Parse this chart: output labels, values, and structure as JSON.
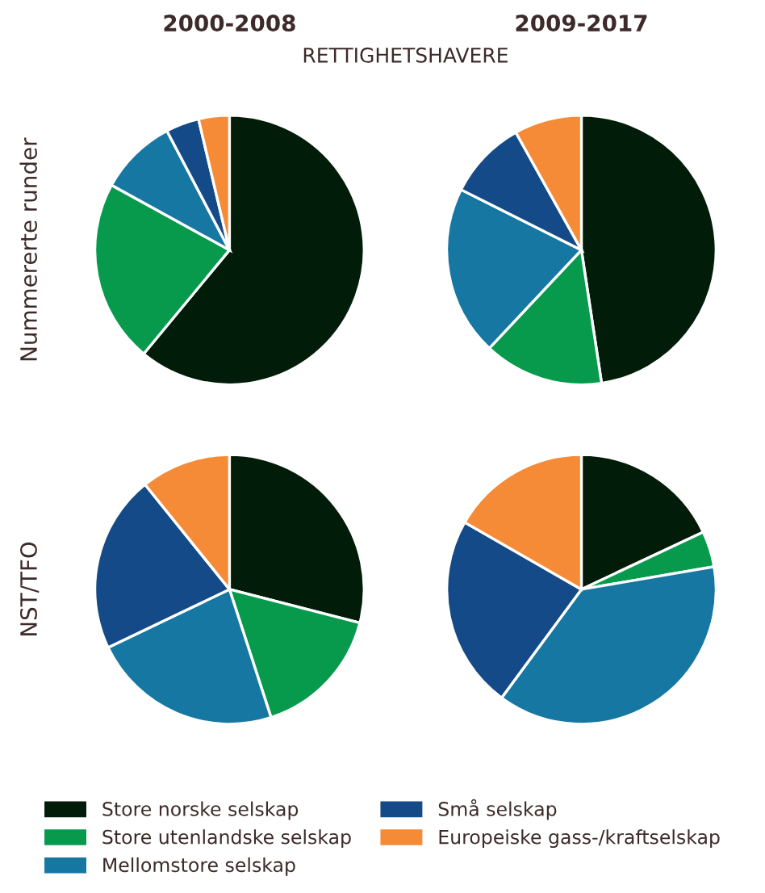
{
  "chart_data": [
    {
      "type": "pie",
      "title": "2000-2008",
      "subtitle": "RETTIGHETSHAVERE",
      "ylabel": "Nummererte runder",
      "legend": "bottom",
      "categories": [
        "Store norske selskap",
        "Store utenlandske selskap",
        "Mellomstore selskap",
        "Små selskap",
        "Europeiske gass-/kraftselskap"
      ],
      "values": [
        61,
        22,
        9.3,
        4,
        3.7
      ],
      "colors": [
        "#011c08",
        "#079a4c",
        "#1677a3",
        "#134a87",
        "#f68b37"
      ]
    },
    {
      "type": "pie",
      "title": "2009-2017",
      "categories": [
        null,
        null,
        null,
        null,
        null
      ],
      "values": [
        47.6,
        14.4,
        20.4,
        9.5,
        8.1
      ],
      "colors": [
        "#011c08",
        "#079a4c",
        "#1677a3",
        "#134a87",
        "#f68b37"
      ]
    },
    {
      "type": "pie",
      "ylabel": "NST/TFO",
      "categories": [
        null,
        null,
        null,
        null,
        null
      ],
      "values": [
        29,
        16,
        22.9,
        21.3,
        10.8
      ],
      "colors": [
        "#011c08",
        "#079a4c",
        "#1677a3",
        "#134a87",
        "#f68b37"
      ]
    },
    {
      "type": "pie",
      "categories": [
        null,
        null,
        null,
        null,
        null
      ],
      "values": [
        18,
        4.3,
        37.8,
        23.2,
        16.7
      ],
      "colors": [
        "#011c08",
        "#079a4c",
        "#1677a3",
        "#134a87",
        "#f68b37"
      ]
    }
  ]
}
